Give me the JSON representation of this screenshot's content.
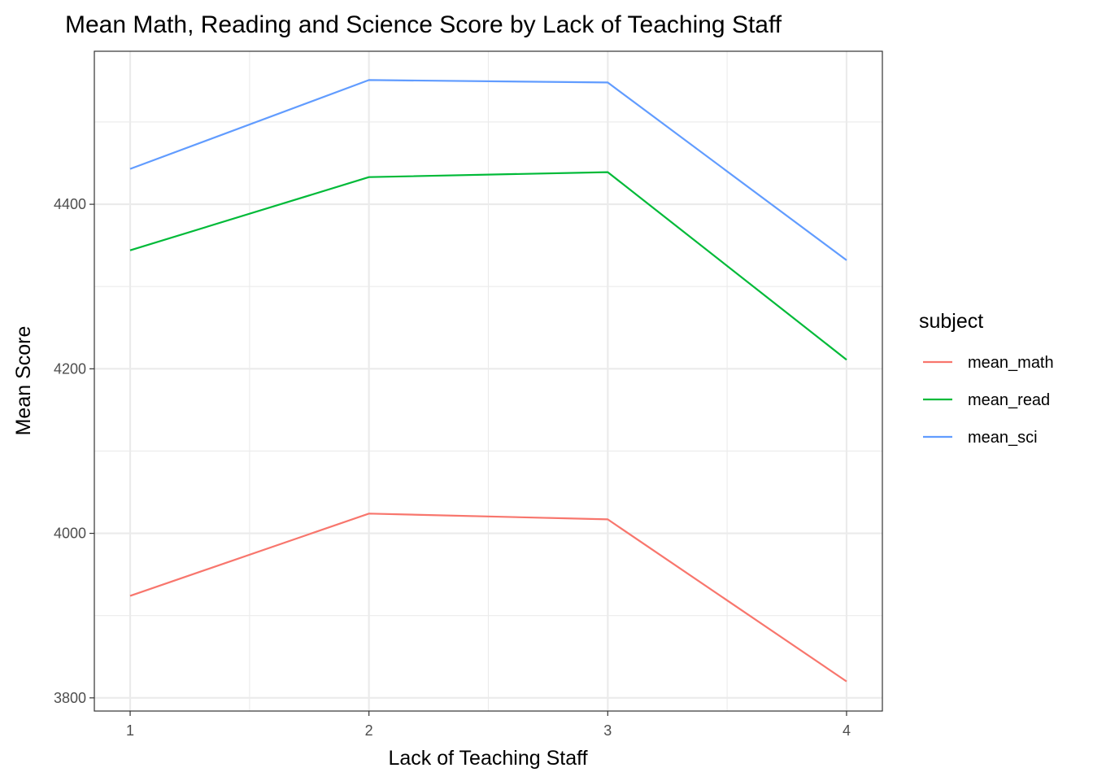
{
  "chart_data": {
    "type": "line",
    "title": "Mean Math, Reading and Science Score by Lack of Teaching Staff",
    "xlabel": "Lack of Teaching Staff",
    "ylabel": "Mean Score",
    "x": [
      1,
      2,
      3,
      4
    ],
    "x_tick_labels": [
      "1",
      "2",
      "3",
      "4"
    ],
    "y_ticks": [
      3800,
      4000,
      4200,
      4400
    ],
    "y_tick_labels": [
      "3800",
      "4000",
      "4200",
      "4400"
    ],
    "xlim": [
      0.85,
      4.15
    ],
    "ylim": [
      3784,
      4586
    ],
    "grid": true,
    "legend_position": "right",
    "legend_title": "subject",
    "series": [
      {
        "name": "mean_math",
        "color": "#F8766D",
        "values": [
          3924,
          4024,
          4017,
          3820
        ]
      },
      {
        "name": "mean_read",
        "color": "#00BA38",
        "values": [
          4344,
          4433,
          4439,
          4211
        ]
      },
      {
        "name": "mean_sci",
        "color": "#619CFF",
        "values": [
          4443,
          4551,
          4548,
          4332
        ]
      }
    ]
  }
}
